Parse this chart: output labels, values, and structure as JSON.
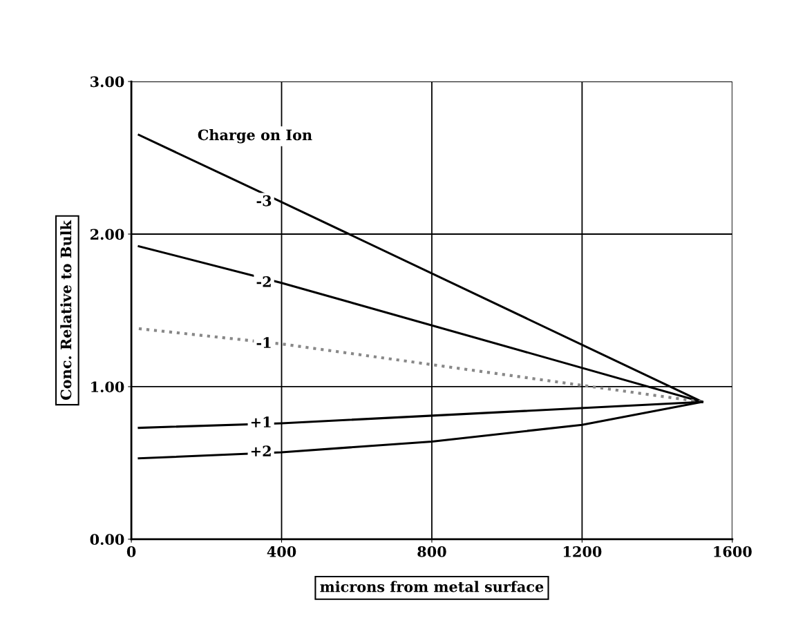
{
  "chart_data": {
    "type": "line",
    "xlabel": "microns from metal surface",
    "ylabel": "Conc. Relative to Bulk",
    "xlim": [
      0,
      1600
    ],
    "xticks": [
      0,
      400,
      800,
      1200,
      1600
    ],
    "ylim": [
      0,
      3
    ],
    "yticks": [
      {
        "value": 0,
        "label": "0.00"
      },
      {
        "value": 1,
        "label": "1.00"
      },
      {
        "value": 2,
        "label": "2.00"
      },
      {
        "value": 3,
        "label": "3.00"
      }
    ],
    "grid": true,
    "marker": "none",
    "line_style": "solid",
    "annotations": [
      "Charge on Ion"
    ],
    "series": [
      {
        "name": "-3",
        "color": "#000000",
        "x": [
          20,
          400,
          1520
        ],
        "values": [
          2.65,
          2.21,
          0.9
        ]
      },
      {
        "name": "-2",
        "color": "#000000",
        "x": [
          20,
          400,
          1520
        ],
        "values": [
          1.92,
          1.68,
          0.9
        ]
      },
      {
        "name": "-1",
        "color": "#888888",
        "line_style": "dotted",
        "x": [
          20,
          400,
          1520
        ],
        "values": [
          1.38,
          1.28,
          0.9
        ]
      },
      {
        "name": "+1",
        "color": "#000000",
        "x": [
          20,
          400,
          1520
        ],
        "values": [
          0.73,
          0.76,
          0.9
        ]
      },
      {
        "name": "+2",
        "color": "#000000",
        "x": [
          20,
          400,
          800,
          1200,
          1520
        ],
        "values": [
          0.53,
          0.57,
          0.64,
          0.75,
          0.9
        ]
      }
    ]
  }
}
